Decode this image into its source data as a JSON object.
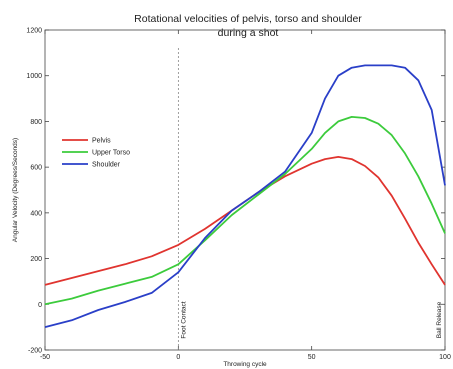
{
  "chart_data": {
    "type": "line",
    "title": [
      "Rotational velocities of pelvis, torso and shoulder",
      "during a shot"
    ],
    "xlabel": "Throwing cycle",
    "ylabel": "Angular Velocity (Degrees/Seconds)",
    "xlim": [
      -50,
      100
    ],
    "ylim": [
      -200,
      1200
    ],
    "xticks": [
      -50,
      0,
      50,
      100
    ],
    "yticks": [
      -200,
      0,
      200,
      400,
      600,
      800,
      1000,
      1200
    ],
    "grid": false,
    "legend_position": "upper-left",
    "annotations": [
      {
        "label": "Foot Contact",
        "x": 0
      },
      {
        "label": "Ball Release",
        "x": 100
      }
    ],
    "series": [
      {
        "name": "Pelvis",
        "color": "#e0342f",
        "x": [
          -50,
          -40,
          -30,
          -20,
          -10,
          0,
          10,
          20,
          30,
          40,
          50,
          55,
          60,
          65,
          70,
          75,
          80,
          85,
          90,
          95,
          100
        ],
        "values": [
          85,
          115,
          145,
          175,
          210,
          260,
          330,
          410,
          490,
          560,
          615,
          635,
          645,
          635,
          605,
          555,
          475,
          375,
          270,
          175,
          85
        ]
      },
      {
        "name": "Upper Torso",
        "color": "#3ccb3c",
        "x": [
          -50,
          -40,
          -30,
          -20,
          -10,
          0,
          10,
          20,
          30,
          40,
          50,
          55,
          60,
          65,
          70,
          75,
          80,
          85,
          90,
          95,
          100
        ],
        "values": [
          0,
          25,
          60,
          90,
          120,
          175,
          280,
          390,
          480,
          570,
          680,
          750,
          800,
          820,
          815,
          790,
          740,
          660,
          560,
          440,
          310
        ]
      },
      {
        "name": "Shoulder",
        "color": "#2a3fc8",
        "x": [
          -50,
          -40,
          -30,
          -20,
          -10,
          0,
          10,
          20,
          30,
          40,
          50,
          55,
          60,
          65,
          70,
          75,
          80,
          85,
          90,
          95,
          100
        ],
        "values": [
          -100,
          -70,
          -25,
          10,
          50,
          140,
          290,
          410,
          490,
          580,
          750,
          900,
          1000,
          1035,
          1045,
          1045,
          1045,
          1035,
          980,
          850,
          520
        ]
      }
    ]
  }
}
